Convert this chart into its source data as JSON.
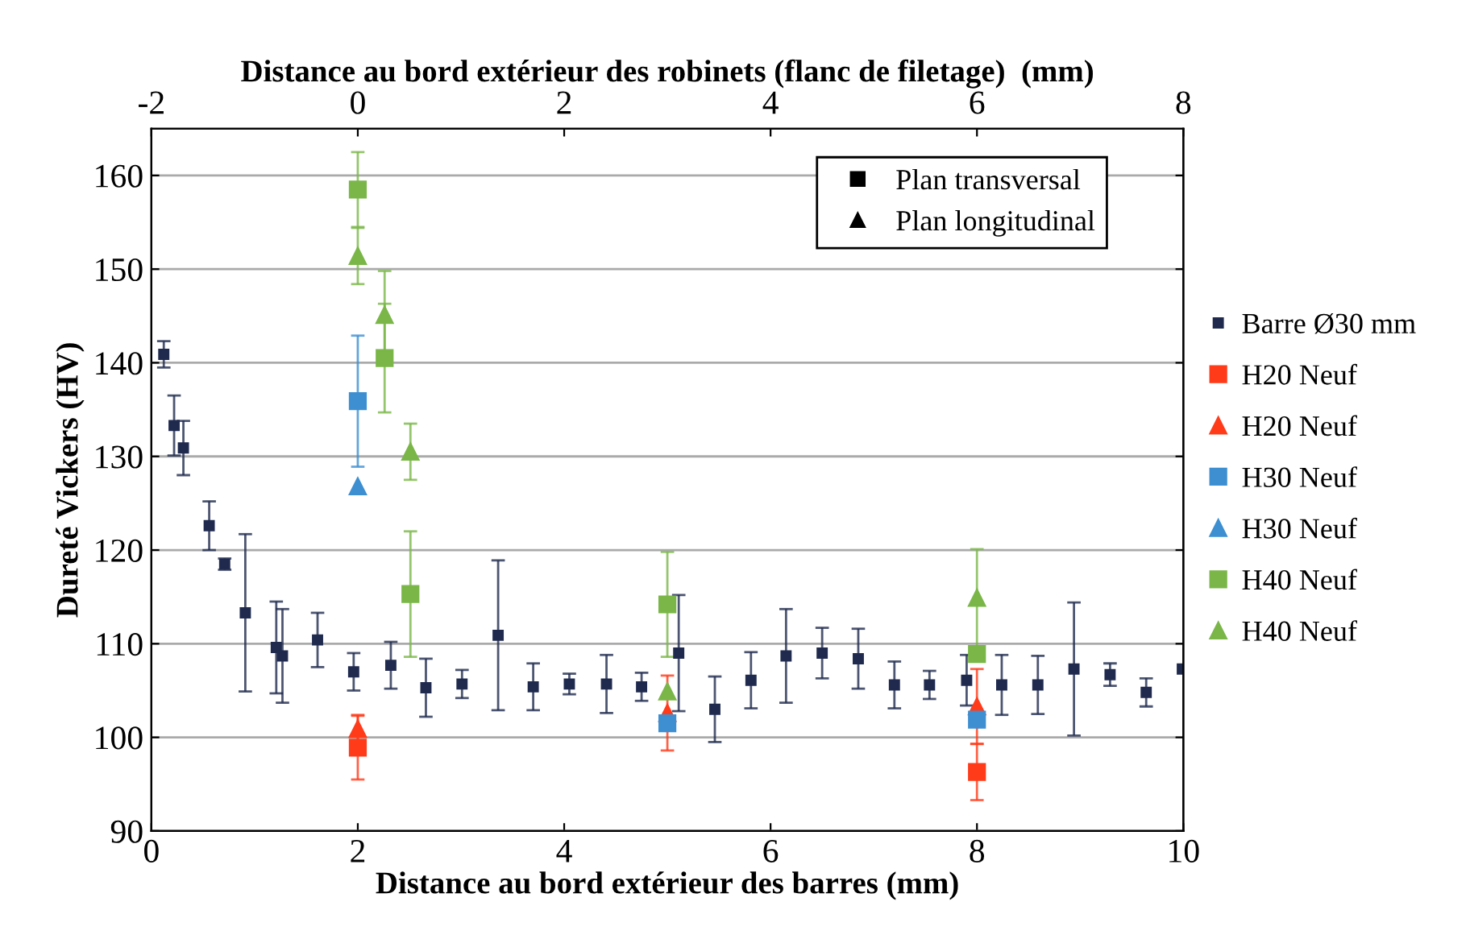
{
  "chart_data": {
    "type": "scatter",
    "xlabel": "Distance au bord extérieur des barres (mm)",
    "x2label": "Distance au bord extérieur des robinets (flanc de filetage)  (mm)",
    "ylabel": "Dureté Vickers (HV)",
    "xlim": [
      0,
      10
    ],
    "xticks": [
      0,
      2,
      4,
      6,
      8,
      10
    ],
    "x2lim": [
      -2,
      8
    ],
    "x2ticks": [
      -2,
      0,
      2,
      4,
      6,
      8
    ],
    "ylim": [
      90,
      165
    ],
    "yticks": [
      90,
      100,
      110,
      120,
      130,
      140,
      150,
      160
    ],
    "grid": "y",
    "legend": "right",
    "annotations": [
      "Plan transversal",
      "Plan longitudinal"
    ],
    "series": [
      {
        "name": "Barre Ø30 mm",
        "color": "#1f2a4e",
        "marker": "square",
        "x": [
          0.12,
          0.22,
          0.31,
          0.56,
          0.71,
          0.91,
          1.21,
          1.27,
          1.61,
          1.96,
          2.32,
          2.66,
          3.01,
          3.36,
          3.7,
          4.05,
          4.41,
          4.75,
          5.11,
          5.46,
          5.81,
          6.15,
          6.5,
          6.85,
          7.2,
          7.54,
          7.9,
          8.24,
          8.59,
          8.94,
          9.29,
          9.64,
          9.99
        ],
        "values": [
          140.9,
          133.3,
          130.9,
          122.6,
          118.5,
          113.3,
          109.6,
          108.7,
          110.4,
          107.0,
          107.7,
          105.3,
          105.7,
          110.9,
          105.4,
          105.7,
          105.7,
          105.4,
          109.0,
          103.0,
          106.1,
          108.7,
          109.0,
          108.4,
          105.6,
          105.6,
          106.1,
          105.6,
          105.6,
          107.3,
          106.7,
          104.8,
          107.3
        ],
        "errors": [
          1.4,
          3.2,
          2.9,
          2.6,
          0.6,
          8.4,
          4.9,
          5.0,
          2.9,
          2.0,
          2.5,
          3.1,
          1.5,
          8.0,
          2.5,
          1.1,
          3.1,
          1.5,
          6.2,
          3.5,
          3.0,
          5.0,
          2.7,
          3.2,
          2.5,
          1.5,
          2.7,
          3.2,
          3.1,
          7.1,
          1.2,
          1.5,
          null
        ]
      },
      {
        "name": "H20 Neuf",
        "color": "#ff3b1a",
        "marker": "square",
        "x": [
          2.0,
          5.0,
          8.0
        ],
        "values": [
          98.9,
          null,
          96.3
        ],
        "errors": [
          3.4,
          null,
          3.0
        ]
      },
      {
        "name": "H20 Neuf",
        "color": "#ff3b1a",
        "marker": "triangle",
        "x": [
          2.0,
          5.0,
          8.0
        ],
        "values": [
          100.9,
          102.6,
          103.3
        ],
        "errors": [
          1.5,
          4.0,
          4.0
        ]
      },
      {
        "name": "H30 Neuf",
        "color": "#3d8fd1",
        "marker": "square",
        "x": [
          2.0,
          5.0,
          8.0
        ],
        "values": [
          135.9,
          101.5,
          101.9
        ],
        "errors": [
          7.0,
          null,
          null
        ]
      },
      {
        "name": "H30 Neuf",
        "color": "#3d8fd1",
        "marker": "triangle",
        "x": [
          2.0
        ],
        "values": [
          126.8
        ],
        "errors": [
          null
        ]
      },
      {
        "name": "H40 Neuf",
        "color": "#7ab648",
        "marker": "square",
        "x": [
          2.0,
          2.26,
          2.51,
          5.0,
          8.0
        ],
        "values": [
          158.5,
          140.5,
          115.3,
          114.2,
          108.9
        ],
        "errors": [
          4.0,
          5.8,
          6.7,
          5.6,
          null
        ]
      },
      {
        "name": "H40 Neuf",
        "color": "#7ab648",
        "marker": "triangle",
        "x": [
          2.0,
          2.26,
          2.51,
          5.0,
          8.0
        ],
        "values": [
          151.4,
          145.1,
          130.5,
          104.9,
          114.9
        ],
        "errors": [
          3.0,
          4.7,
          3.0,
          null,
          5.2
        ]
      }
    ]
  }
}
